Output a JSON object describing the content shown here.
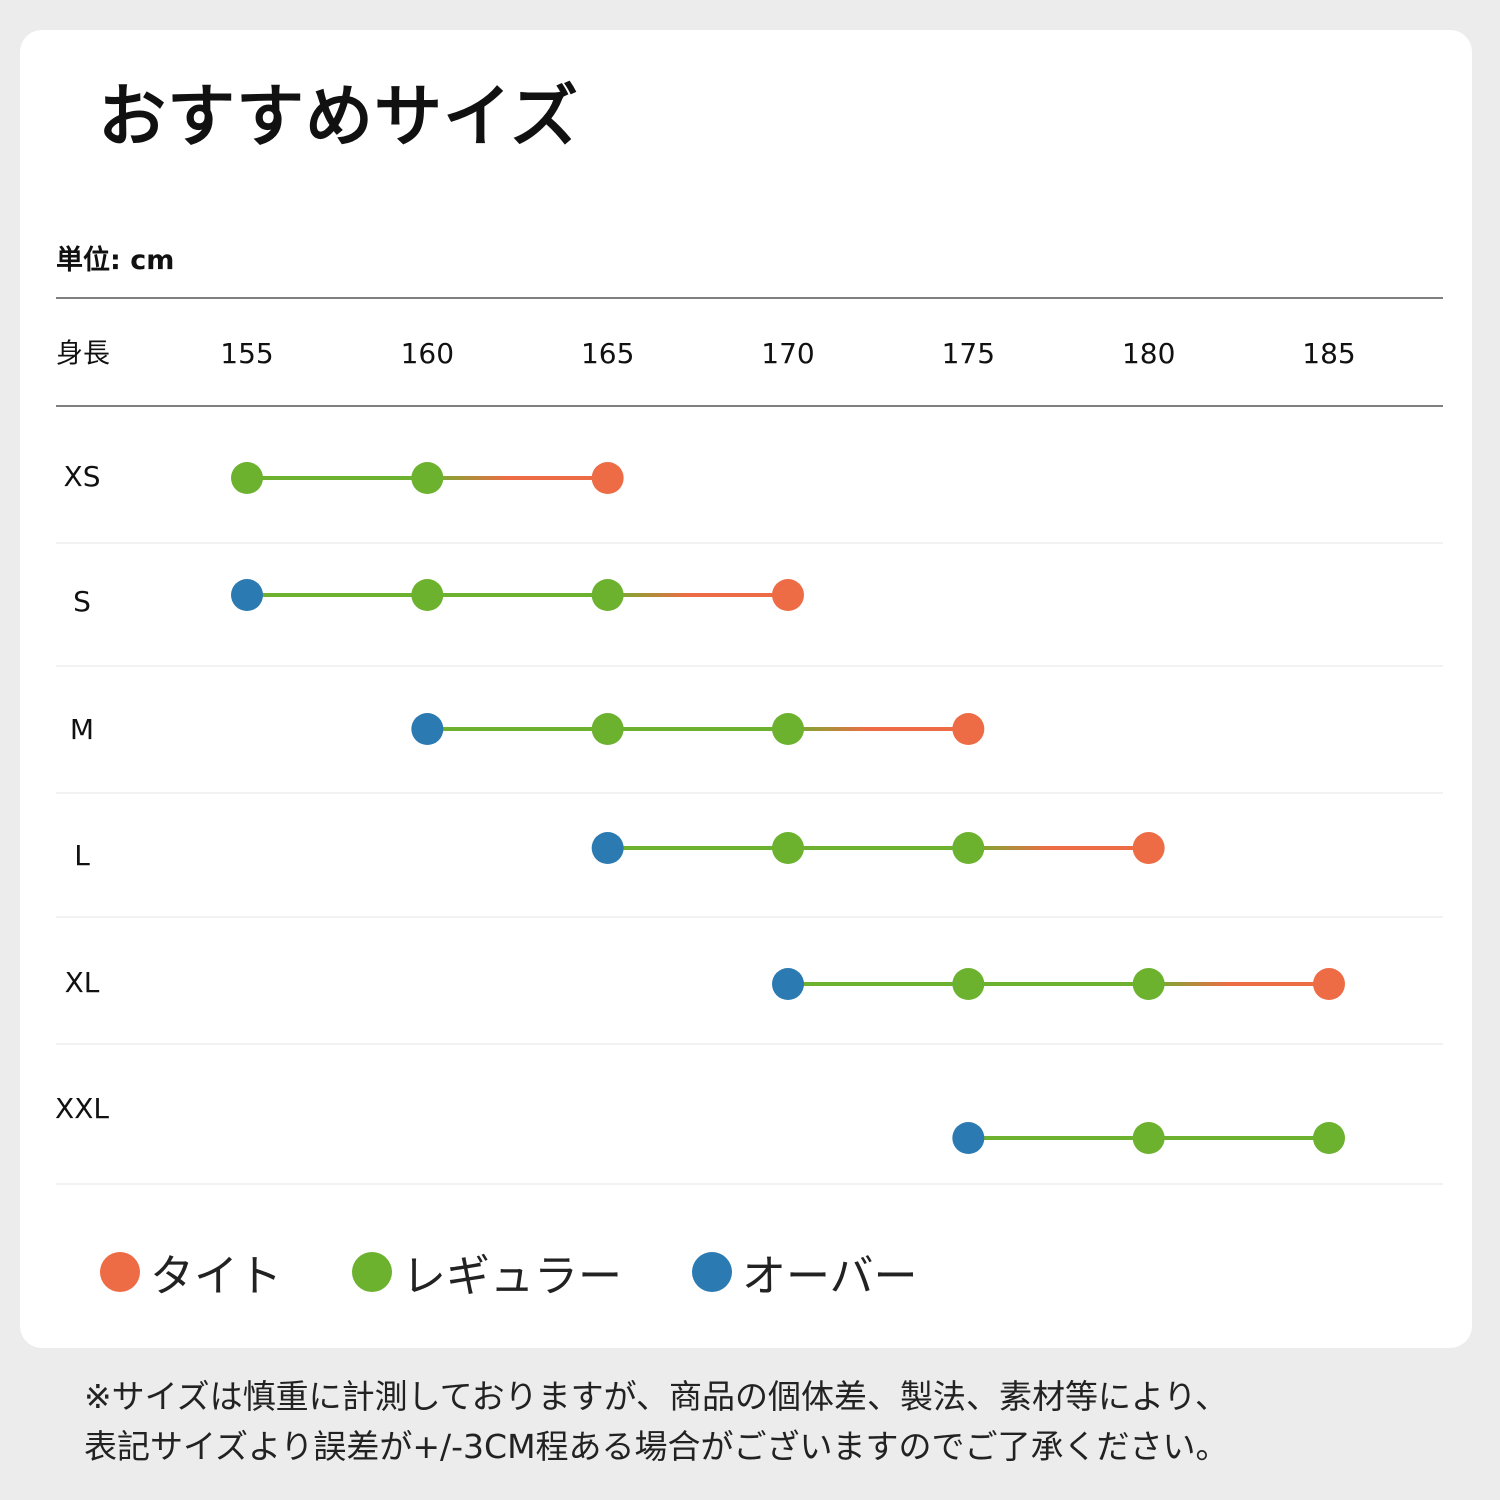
{
  "title": "おすすめサイズ",
  "unit_label": "単位: cm",
  "colors": {
    "tight": "#ee6c45",
    "regular": "#6cb22f",
    "over": "#2b7ab1",
    "rule": "#555555",
    "row_divider": "#eeeeee"
  },
  "chart_data": {
    "type": "dot-range",
    "title": "おすすめサイズ",
    "xlabel": "身長",
    "unit": "単位: cm",
    "x_ticks": [
      155,
      160,
      165,
      170,
      175,
      180,
      185
    ],
    "xlim": [
      155,
      185
    ],
    "categories": [
      "XS",
      "S",
      "M",
      "L",
      "XL",
      "XXL"
    ],
    "rows": [
      {
        "size": "XS",
        "points": [
          {
            "height": 155,
            "fit": "regular"
          },
          {
            "height": 160,
            "fit": "regular"
          },
          {
            "height": 165,
            "fit": "tight"
          }
        ]
      },
      {
        "size": "S",
        "points": [
          {
            "height": 155,
            "fit": "over"
          },
          {
            "height": 160,
            "fit": "regular"
          },
          {
            "height": 165,
            "fit": "regular"
          },
          {
            "height": 170,
            "fit": "tight"
          }
        ]
      },
      {
        "size": "M",
        "points": [
          {
            "height": 160,
            "fit": "over"
          },
          {
            "height": 165,
            "fit": "regular"
          },
          {
            "height": 170,
            "fit": "regular"
          },
          {
            "height": 175,
            "fit": "tight"
          }
        ]
      },
      {
        "size": "L",
        "points": [
          {
            "height": 165,
            "fit": "over"
          },
          {
            "height": 170,
            "fit": "regular"
          },
          {
            "height": 175,
            "fit": "regular"
          },
          {
            "height": 180,
            "fit": "tight"
          }
        ]
      },
      {
        "size": "XL",
        "points": [
          {
            "height": 170,
            "fit": "over"
          },
          {
            "height": 175,
            "fit": "regular"
          },
          {
            "height": 180,
            "fit": "regular"
          },
          {
            "height": 185,
            "fit": "tight"
          }
        ]
      },
      {
        "size": "XXL",
        "points": [
          {
            "height": 175,
            "fit": "over"
          },
          {
            "height": 180,
            "fit": "regular"
          },
          {
            "height": 185,
            "fit": "regular"
          }
        ]
      }
    ],
    "legend": [
      {
        "key": "tight",
        "label": "タイト"
      },
      {
        "key": "regular",
        "label": "レギュラー"
      },
      {
        "key": "over",
        "label": "オーバー"
      }
    ]
  },
  "legend": {
    "tight": "タイト",
    "regular": "レギュラー",
    "over": "オーバー"
  },
  "note": {
    "line1": "※サイズは慎重に計測しておりますが、商品の個体差、製法、素材等により、",
    "line2": "表記サイズより誤差が+/-3CM程ある場合がございますのでご了承ください。"
  }
}
